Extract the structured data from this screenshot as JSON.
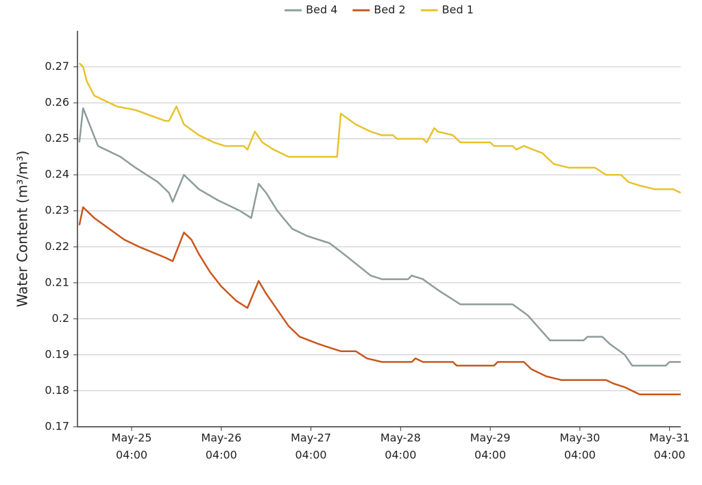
{
  "chart_data": {
    "type": "line",
    "y_label": "Water Content (m³/m³)",
    "ylim": [
      0.17,
      0.28
    ],
    "yticks": [
      0.17,
      0.18,
      0.19,
      0.2,
      0.21,
      0.22,
      0.23,
      0.24,
      0.25,
      0.26,
      0.27
    ],
    "xlim": [
      "May-24 13:30",
      "May-31 07:00"
    ],
    "xticks": [
      {
        "value": "May-25 04:00",
        "label": [
          "May-25",
          "04:00"
        ]
      },
      {
        "value": "May-26 04:00",
        "label": [
          "May-26",
          "04:00"
        ]
      },
      {
        "value": "May-27 04:00",
        "label": [
          "May-27",
          "04:00"
        ]
      },
      {
        "value": "May-28 04:00",
        "label": [
          "May-28",
          "04:00"
        ]
      },
      {
        "value": "May-29 04:00",
        "label": [
          "May-29",
          "04:00"
        ]
      },
      {
        "value": "May-30 04:00",
        "label": [
          "May-30",
          "04:00"
        ]
      },
      {
        "value": "May-31 04:00",
        "label": [
          "May-31",
          "04:00"
        ]
      }
    ],
    "grid": true,
    "legend": "top",
    "series": [
      {
        "name": "Bed 4",
        "color": "#8c9c9b",
        "x": [
          "May-24 14:00",
          "May-24 15:00",
          "May-24 19:00",
          "May-25 01:00",
          "May-25 05:00",
          "May-25 11:00",
          "May-25 14:00",
          "May-25 15:00",
          "May-25 18:00",
          "May-25 22:00",
          "May-26 03:00",
          "May-26 09:00",
          "May-26 12:00",
          "May-26 14:00",
          "May-26 16:00",
          "May-26 19:00",
          "May-26 23:00",
          "May-27 03:00",
          "May-27 09:00",
          "May-27 14:00",
          "May-27 20:00",
          "May-27 23:00",
          "May-28 06:00",
          "May-28 07:00",
          "May-28 10:00",
          "May-28 14:00",
          "May-28 20:00",
          "May-29 10:00",
          "May-29 14:00",
          "May-29 20:00",
          "May-30 05:00",
          "May-30 06:00",
          "May-30 10:00",
          "May-30 12:00",
          "May-30 16:00",
          "May-30 18:00",
          "May-31 03:00",
          "May-31 04:00",
          "May-31 07:00"
        ],
        "values": [
          0.249,
          0.2585,
          0.248,
          0.245,
          0.242,
          0.238,
          0.235,
          0.2325,
          0.24,
          0.236,
          0.233,
          0.23,
          0.228,
          0.2375,
          0.235,
          0.23,
          0.225,
          0.223,
          0.221,
          0.217,
          0.212,
          0.211,
          0.211,
          0.212,
          0.211,
          0.208,
          0.204,
          0.204,
          0.201,
          0.194,
          0.194,
          0.195,
          0.195,
          0.193,
          0.19,
          0.187,
          0.187,
          0.188,
          0.188
        ]
      },
      {
        "name": "Bed 2",
        "color": "#c9561b",
        "x": [
          "May-24 14:00",
          "May-24 15:00",
          "May-24 18:00",
          "May-24 22:00",
          "May-25 02:00",
          "May-25 06:00",
          "May-25 13:00",
          "May-25 15:00",
          "May-25 18:00",
          "May-25 20:00",
          "May-25 22:00",
          "May-26 01:00",
          "May-26 04:00",
          "May-26 08:00",
          "May-26 11:00",
          "May-26 14:00",
          "May-26 16:00",
          "May-26 22:00",
          "May-27 01:00",
          "May-27 06:00",
          "May-27 09:00",
          "May-27 12:00",
          "May-27 16:00",
          "May-27 19:00",
          "May-27 23:00",
          "May-28 07:00",
          "May-28 08:00",
          "May-28 10:00",
          "May-28 18:00",
          "May-28 19:00",
          "May-29 05:00",
          "May-29 06:00",
          "May-29 13:00",
          "May-29 15:00",
          "May-29 19:00",
          "May-29 23:00",
          "May-30 11:00",
          "May-30 13:00",
          "May-30 16:00",
          "May-30 20:00",
          "May-31 07:00"
        ],
        "values": [
          0.226,
          0.231,
          0.228,
          0.225,
          0.222,
          0.22,
          0.217,
          0.216,
          0.224,
          0.222,
          0.218,
          0.213,
          0.209,
          0.205,
          0.203,
          0.2105,
          0.207,
          0.198,
          0.195,
          0.193,
          0.192,
          0.191,
          0.191,
          0.189,
          0.188,
          0.188,
          0.189,
          0.188,
          0.188,
          0.187,
          0.187,
          0.188,
          0.188,
          0.186,
          0.184,
          0.183,
          0.183,
          0.182,
          0.181,
          0.179,
          0.179
        ]
      },
      {
        "name": "Bed 1",
        "color": "#e8c22c",
        "x": [
          "May-24 14:00",
          "May-24 15:00",
          "May-24 16:00",
          "May-24 18:00",
          "May-24 20:00",
          "May-25 00:00",
          "May-25 05:00",
          "May-25 13:00",
          "May-25 14:00",
          "May-25 16:00",
          "May-25 18:00",
          "May-25 22:00",
          "May-26 02:00",
          "May-26 05:00",
          "May-26 10:00",
          "May-26 11:00",
          "May-26 13:00",
          "May-26 15:00",
          "May-26 18:00",
          "May-26 22:00",
          "May-27 10:00",
          "May-27 11:00",
          "May-27 12:00",
          "May-27 16:00",
          "May-27 20:00",
          "May-27 23:00",
          "May-28 02:00",
          "May-28 03:00",
          "May-28 10:00",
          "May-28 11:00",
          "May-28 13:00",
          "May-28 14:00",
          "May-28 18:00",
          "May-28 20:00",
          "May-29 04:00",
          "May-29 05:00",
          "May-29 10:00",
          "May-29 11:00",
          "May-29 13:00",
          "May-29 18:00",
          "May-29 21:00",
          "May-30 01:00",
          "May-30 08:00",
          "May-30 11:00",
          "May-30 15:00",
          "May-30 17:00",
          "May-30 20:00",
          "May-31 00:00",
          "May-31 05:00",
          "May-31 07:00"
        ],
        "values": [
          0.271,
          0.27,
          0.266,
          0.262,
          0.261,
          0.259,
          0.258,
          0.255,
          0.255,
          0.259,
          0.254,
          0.251,
          0.249,
          0.248,
          0.248,
          0.247,
          0.252,
          0.249,
          0.247,
          0.245,
          0.245,
          0.245,
          0.257,
          0.254,
          0.252,
          0.251,
          0.251,
          0.25,
          0.25,
          0.249,
          0.253,
          0.252,
          0.251,
          0.249,
          0.249,
          0.248,
          0.248,
          0.247,
          0.248,
          0.246,
          0.243,
          0.242,
          0.242,
          0.24,
          0.24,
          0.238,
          0.237,
          0.236,
          0.236,
          0.235
        ]
      }
    ]
  }
}
